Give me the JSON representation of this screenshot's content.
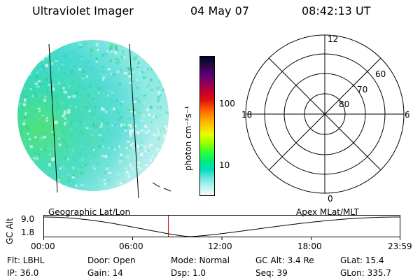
{
  "header": {
    "instrument": "Ultraviolet Imager",
    "date": "04 May 07",
    "time": "08:42:13 UT"
  },
  "colorbar": {
    "label": "photon cm⁻²s⁻¹",
    "ticks": [
      "100",
      "10"
    ],
    "colors": [
      "#000033",
      "#2a0a3c",
      "#55007a",
      "#8c0060",
      "#c00030",
      "#e01010",
      "#ff5500",
      "#ff9900",
      "#ffcc00",
      "#e6ff00",
      "#99ff00",
      "#33ff33",
      "#00ee77",
      "#00ddbb",
      "#66e8e0",
      "#b8f4f2",
      "#f6fbfb"
    ]
  },
  "polar": {
    "mlt_labels": {
      "top": "12",
      "right": "6",
      "bottom": "0",
      "left": "18"
    },
    "lat_labels": [
      "60",
      "70",
      "80"
    ]
  },
  "timeline": {
    "y_axis_label": "GC Alt",
    "y_ticks": [
      "9.0",
      "1.8"
    ],
    "left_title": "Geographic Lat/Lon",
    "right_title": "Apex MLat/MLT",
    "x_ticks": [
      "00:00",
      "06:00",
      "12:00",
      "18:00",
      "23:59"
    ],
    "current_time_fraction": 0.35
  },
  "info": {
    "row1": [
      {
        "key": "Flt",
        "value": "LBHL"
      },
      {
        "key": "Door",
        "value": "Open"
      },
      {
        "key": "Mode",
        "value": "Normal"
      },
      {
        "key": "GC Alt",
        "value": "3.4 Re"
      },
      {
        "key": "GLat",
        "value": "15.4"
      }
    ],
    "row2": [
      {
        "key": "IP",
        "value": "36.0"
      },
      {
        "key": "Gain",
        "value": "14"
      },
      {
        "key": "Dsp",
        "value": "1.0"
      },
      {
        "key": "Seq",
        "value": "39"
      },
      {
        "key": "GLon",
        "value": "335.7"
      }
    ]
  }
}
